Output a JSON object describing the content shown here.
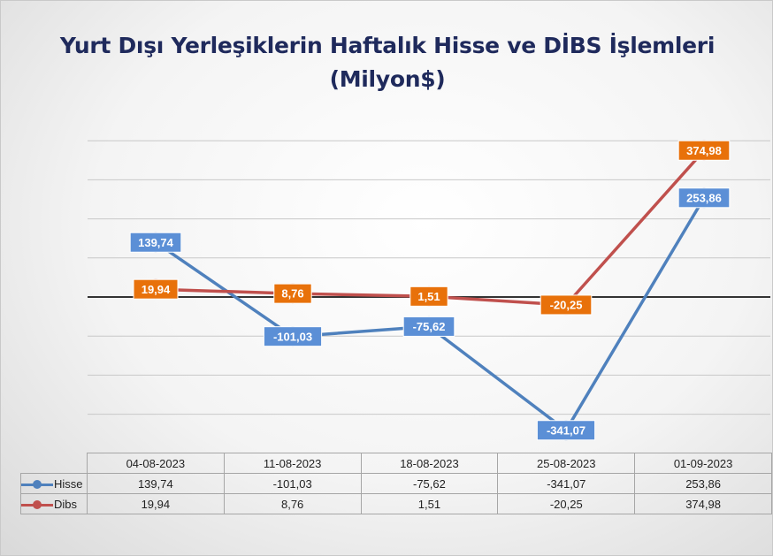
{
  "chart_data": {
    "type": "line",
    "title": "Yurt Dışı Yerleşiklerin Haftalık Hisse ve DİBS İşlemleri",
    "subtitle": "(Milyon$)",
    "categories": [
      "04-08-2023",
      "11-08-2023",
      "18-08-2023",
      "25-08-2023",
      "01-09-2023"
    ],
    "series": [
      {
        "name": "Hisse",
        "color": "#4f81bd",
        "label_color": "#5b8fd6",
        "values": [
          139.74,
          -101.03,
          -75.62,
          -341.07,
          253.86
        ],
        "labels": [
          "139,74",
          "-101,03",
          "-75,62",
          "-341,07",
          "253,86"
        ]
      },
      {
        "name": "Dibs",
        "color": "#c0504d",
        "label_color": "#e8710a",
        "values": [
          19.94,
          8.76,
          1.51,
          -20.25,
          374.98
        ],
        "labels": [
          "19,94",
          "8,76",
          "1,51",
          "-20,25",
          "374,98"
        ]
      }
    ],
    "ylim": [
      -300,
      400
    ],
    "grid": true,
    "legend": "data-table"
  }
}
